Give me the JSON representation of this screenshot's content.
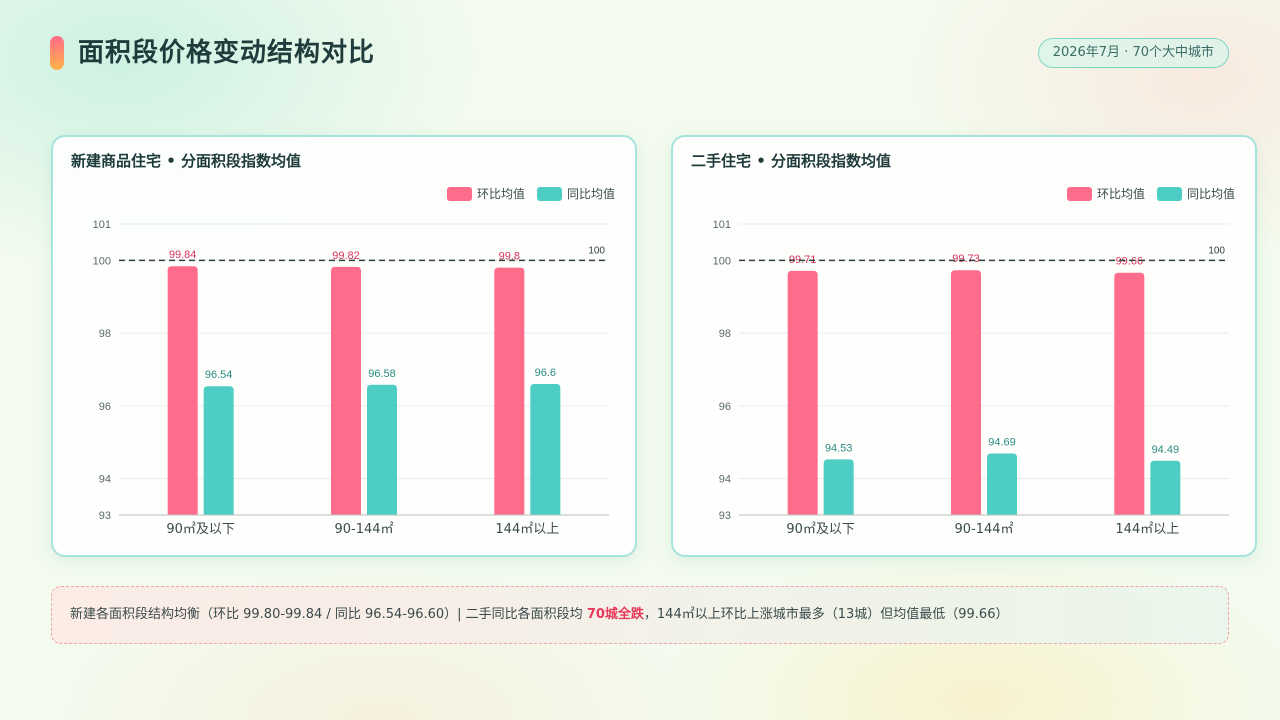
{
  "header": {
    "title": "面积段价格变动结构对比",
    "badge": "2026年7月 · 70个大中城市"
  },
  "colors": {
    "mom": "#ff6b8a",
    "yoy": "#4ecdc4",
    "mom_label": "#d6325a",
    "yoy_label": "#2a8a82"
  },
  "legend": {
    "mom": "环比均值",
    "yoy": "同比均值"
  },
  "chart_data": [
    {
      "type": "bar",
      "title": "新建商品住宅 • 分面积段指数均值",
      "categories": [
        "90㎡及以下",
        "90-144㎡",
        "144㎡以上"
      ],
      "series": [
        {
          "name": "环比均值",
          "values": [
            99.84,
            99.82,
            99.8
          ]
        },
        {
          "name": "同比均值",
          "values": [
            96.54,
            96.58,
            96.6
          ]
        }
      ],
      "ylim": [
        93,
        101
      ],
      "yticks": [
        93,
        94,
        96,
        98,
        100,
        101
      ],
      "reference_line": {
        "value": 100,
        "label": "100"
      },
      "legend_position": "top-right",
      "grid": true
    },
    {
      "type": "bar",
      "title": "二手住宅 • 分面积段指数均值",
      "categories": [
        "90㎡及以下",
        "90-144㎡",
        "144㎡以上"
      ],
      "series": [
        {
          "name": "环比均值",
          "values": [
            99.71,
            99.73,
            99.66
          ]
        },
        {
          "name": "同比均值",
          "values": [
            94.53,
            94.69,
            94.49
          ]
        }
      ],
      "ylim": [
        93,
        101
      ],
      "yticks": [
        93,
        94,
        96,
        98,
        100,
        101
      ],
      "reference_line": {
        "value": 100,
        "label": "100"
      },
      "legend_position": "top-right",
      "grid": true
    }
  ],
  "summary": {
    "part1": "新建各面积段结构均衡（环比 99.80-99.84 / 同比 96.54-96.60）| 二手同比各面积段均 ",
    "highlight": "70城全跌",
    "part2": "，144㎡以上环比上涨城市最多（13城）但均值最低（99.66）"
  }
}
